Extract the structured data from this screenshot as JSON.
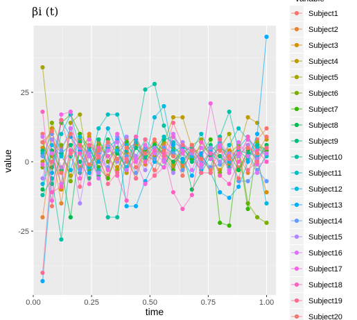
{
  "chart_data": {
    "type": "line",
    "title": "βi (t)",
    "xlabel": "time",
    "ylabel": "value",
    "xlim": [
      0.0,
      1.04
    ],
    "ylim": [
      -48.0,
      49.0
    ],
    "xticks": [
      0.0,
      0.25,
      0.5,
      0.75,
      1.0
    ],
    "xtick_labels": [
      "0.00",
      "0.25",
      "0.50",
      "0.75",
      "1.00"
    ],
    "yticks": [
      -25,
      0,
      25
    ],
    "ytick_labels": [
      "-25",
      "0",
      "25"
    ],
    "x": [
      0.04,
      0.08,
      0.12,
      0.16,
      0.2,
      0.24,
      0.28,
      0.32,
      0.36,
      0.4,
      0.44,
      0.48,
      0.52,
      0.56,
      0.6,
      0.64,
      0.68,
      0.72,
      0.76,
      0.8,
      0.84,
      0.88,
      0.92,
      0.96,
      1.0
    ],
    "grid": true,
    "legend": {
      "title": "variable",
      "position": "right"
    },
    "series": [
      {
        "name": "Subject1",
        "color": "#F8766D",
        "values": [
          10,
          -16,
          5,
          10,
          -4,
          3,
          7,
          -5,
          3,
          0,
          8,
          2,
          -3,
          6,
          2,
          -1,
          5,
          3,
          -4,
          2,
          6,
          -2,
          3,
          8,
          12
        ]
      },
      {
        "name": "Subject2",
        "color": "#EA8331",
        "values": [
          -20,
          4,
          -15,
          6,
          -2,
          10,
          1,
          -6,
          4,
          8,
          2,
          -1,
          5,
          3,
          -2,
          7,
          1,
          -3,
          4,
          6,
          0,
          2,
          -4,
          5,
          3
        ]
      },
      {
        "name": "Subject3",
        "color": "#D89000",
        "values": [
          5,
          12,
          -10,
          2,
          8,
          -3,
          4,
          6,
          -2,
          3,
          0,
          5,
          2,
          8,
          4,
          -2,
          3,
          5,
          1,
          -3,
          4,
          2,
          6,
          0,
          -11
        ]
      },
      {
        "name": "Subject4",
        "color": "#C09B00",
        "values": [
          0,
          8,
          3,
          -5,
          4,
          9,
          -2,
          5,
          1,
          -4,
          6,
          3,
          0,
          7,
          16,
          16,
          5,
          0,
          3,
          2,
          -1,
          4,
          16,
          14,
          8
        ]
      },
      {
        "name": "Subject5",
        "color": "#A3A500",
        "values": [
          34,
          2,
          -8,
          14,
          17,
          -4,
          6,
          2,
          -3,
          5,
          9,
          2,
          7,
          4,
          -1,
          3,
          6,
          8,
          2,
          5,
          10,
          -3,
          2,
          7,
          4
        ]
      },
      {
        "name": "Subject6",
        "color": "#7CAE00",
        "values": [
          -2,
          14,
          6,
          -7,
          3,
          -3,
          8,
          0,
          5,
          2,
          -6,
          4,
          1,
          -2,
          5,
          3,
          0,
          7,
          2,
          -4,
          3,
          6,
          -15,
          -20,
          -22
        ]
      },
      {
        "name": "Subject7",
        "color": "#39B600",
        "values": [
          7,
          -2,
          14,
          17,
          10,
          5,
          -2,
          -6,
          3,
          7,
          0,
          4,
          6,
          2,
          -3,
          5,
          1,
          3,
          8,
          -22,
          -23,
          4,
          -17,
          6,
          4
        ]
      },
      {
        "name": "Subject8",
        "color": "#00BB4E",
        "values": [
          -10,
          4,
          -3,
          -20,
          7,
          2,
          -5,
          8,
          3,
          -2,
          5,
          1,
          6,
          3,
          0,
          4,
          -10,
          -4,
          2,
          5,
          3,
          -3,
          4,
          1,
          6
        ]
      },
      {
        "name": "Subject9",
        "color": "#00BF7D",
        "values": [
          4,
          -8,
          3,
          6,
          0,
          -6,
          8,
          2,
          4,
          -3,
          5,
          2,
          1,
          8,
          9,
          5,
          0,
          3,
          6,
          2,
          -2,
          4,
          3,
          -3,
          2
        ]
      },
      {
        "name": "Subject10",
        "color": "#00C1A3",
        "values": [
          -12,
          -6,
          -28,
          2,
          -4,
          6,
          -3,
          -20,
          -20,
          4,
          7,
          26,
          28,
          13,
          4,
          0,
          5,
          2,
          -2,
          9,
          18,
          4,
          1,
          6,
          3
        ]
      },
      {
        "name": "Subject11",
        "color": "#00BFC4",
        "values": [
          3,
          -4,
          10,
          17,
          5,
          -2,
          12,
          17,
          17,
          6,
          2,
          8,
          4,
          9,
          7,
          5,
          4,
          10,
          3,
          0,
          6,
          12,
          8,
          5,
          2
        ]
      },
      {
        "name": "Subject12",
        "color": "#00B9E3",
        "values": [
          -8,
          6,
          2,
          -3,
          9,
          4,
          0,
          12,
          4,
          -2,
          8,
          0,
          16,
          20,
          3,
          6,
          2,
          -3,
          4,
          7,
          0,
          5,
          9,
          2,
          -15
        ]
      },
      {
        "name": "Subject13",
        "color": "#00ADFA",
        "values": [
          -43,
          -4,
          15,
          9,
          4,
          -4,
          0,
          5,
          8,
          -16,
          -16,
          -7,
          0,
          -2,
          6,
          1,
          -5,
          3,
          -4,
          -11,
          -13,
          -9,
          0,
          10,
          45
        ]
      },
      {
        "name": "Subject14",
        "color": "#619CFF",
        "values": [
          2,
          10,
          4,
          12,
          -3,
          6,
          3,
          -2,
          9,
          2,
          -4,
          5,
          1,
          5,
          3,
          -3,
          4,
          0,
          -2,
          -1,
          1,
          -7,
          -7,
          -3,
          -7
        ]
      },
      {
        "name": "Subject15",
        "color": "#AE87FF",
        "values": [
          -6,
          8,
          -2,
          4,
          -15,
          3,
          -4,
          6,
          0,
          9,
          2,
          -3,
          5,
          1,
          -4,
          7,
          3,
          -2,
          5,
          0,
          3,
          2,
          6,
          1,
          5
        ]
      },
      {
        "name": "Subject16",
        "color": "#DB72FB",
        "values": [
          9,
          3,
          -8,
          12,
          5,
          2,
          -6,
          4,
          7,
          -3,
          1,
          6,
          3,
          0,
          10,
          4,
          -3,
          5,
          1,
          6,
          -3,
          7,
          2,
          -4,
          3
        ]
      },
      {
        "name": "Subject17",
        "color": "#F564E3",
        "values": [
          -1,
          -14,
          17,
          18,
          -6,
          8,
          2,
          -3,
          10,
          5,
          0,
          -8,
          -5,
          -2,
          9,
          3,
          6,
          -1,
          21,
          5,
          -4,
          3,
          8,
          -1,
          0
        ]
      },
      {
        "name": "Subject18",
        "color": "#FF61C3",
        "values": [
          18,
          -11,
          -9,
          4,
          3,
          -8,
          5,
          2,
          -5,
          -14,
          9,
          0,
          4,
          3,
          -11,
          -17,
          -12,
          7,
          3,
          -5,
          -8,
          0,
          9,
          4,
          0
        ]
      },
      {
        "name": "Subject19",
        "color": "#FF6C91",
        "values": [
          -40,
          0,
          15,
          3,
          -9,
          6,
          2,
          -8,
          -4,
          1,
          -6,
          8,
          -5,
          2,
          14,
          6,
          4,
          -4,
          -4,
          8,
          1,
          5,
          -3,
          0,
          5
        ]
      },
      {
        "name": "Subject20",
        "color": "#F8766D",
        "values": [
          7,
          11,
          -4,
          10,
          6,
          -1,
          4,
          7,
          1,
          5,
          -2,
          3,
          8,
          4,
          2,
          -5,
          6,
          1,
          -3,
          4,
          2,
          -6,
          5,
          3,
          9
        ]
      }
    ]
  }
}
